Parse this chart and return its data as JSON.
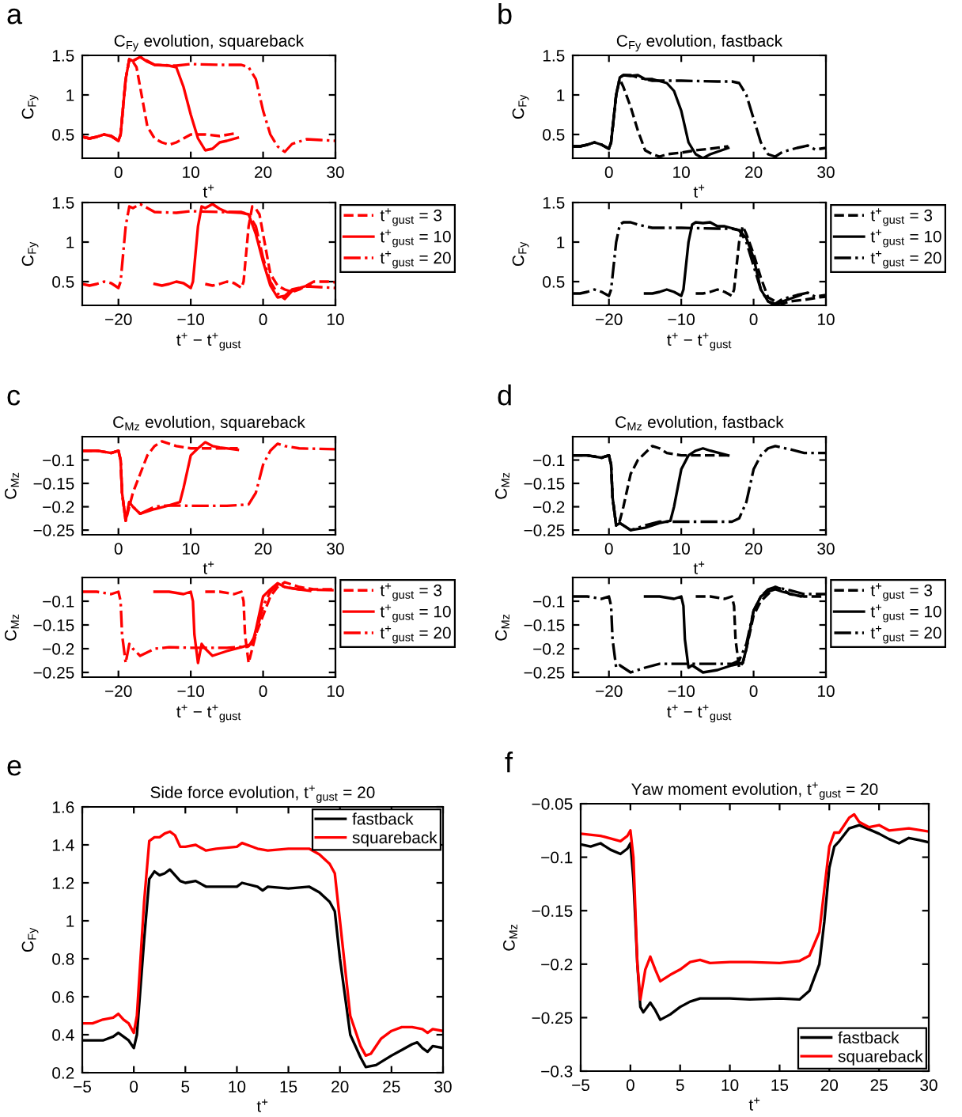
{
  "chart_data": [
    {
      "type": "line",
      "title": "C$_{Fy}$ evolution, squareback",
      "xlabel": "t$^{+}$",
      "ylabel": "C$_{Fy}$",
      "annotations": [
        "a"
      ],
      "xlim": [
        -5,
        30
      ],
      "ylim": [
        0.2,
        1.5
      ],
      "xticks": [
        0,
        10,
        20,
        30
      ],
      "yticks": [
        0.5,
        1,
        1.5
      ],
      "series": [
        {
          "color": "#ff0000",
          "line_style": "dashed",
          "x": [
            -5,
            -4,
            -3,
            -2,
            -1,
            0,
            0.3,
            1,
            1.5,
            2,
            2.5,
            3,
            4,
            5,
            6,
            7,
            8,
            9,
            10,
            12,
            14,
            16.5
          ],
          "values": [
            0.47,
            0.45,
            0.47,
            0.5,
            0.48,
            0.42,
            0.5,
            1.2,
            1.45,
            1.42,
            1.35,
            1.1,
            0.6,
            0.45,
            0.4,
            0.37,
            0.4,
            0.45,
            0.5,
            0.5,
            0.48,
            0.52
          ]
        },
        {
          "color": "#ff0000",
          "line_style": "solid",
          "x": [
            -5,
            -4,
            -3,
            -2,
            -1,
            0,
            0.3,
            1,
            1.5,
            2,
            3,
            4,
            5,
            7,
            8,
            9,
            10,
            11,
            12,
            13,
            14,
            15,
            16.5
          ],
          "values": [
            0.47,
            0.45,
            0.47,
            0.5,
            0.48,
            0.42,
            0.5,
            1.2,
            1.45,
            1.43,
            1.48,
            1.42,
            1.38,
            1.37,
            1.35,
            1.1,
            0.75,
            0.45,
            0.3,
            0.32,
            0.4,
            0.42,
            0.46
          ]
        },
        {
          "color": "#ff0000",
          "line_style": "dashdot",
          "x": [
            -5,
            -4,
            -3,
            -2,
            -1,
            0,
            0.3,
            1,
            1.5,
            2,
            3,
            5,
            8,
            10,
            14,
            17,
            18,
            19,
            20,
            21,
            22,
            23,
            24,
            26,
            28,
            30
          ],
          "values": [
            0.47,
            0.45,
            0.47,
            0.5,
            0.48,
            0.42,
            0.5,
            1.2,
            1.45,
            1.43,
            1.48,
            1.38,
            1.37,
            1.39,
            1.38,
            1.38,
            1.35,
            1.2,
            0.8,
            0.5,
            0.35,
            0.28,
            0.38,
            0.44,
            0.43,
            0.42
          ]
        }
      ]
    },
    {
      "type": "line",
      "xlabel": "t$^{+}$ − t$^{+}$$_{gust}$",
      "ylabel": "C$_{Fy}$",
      "legend": "right",
      "xlim": [
        -25,
        10
      ],
      "ylim": [
        0.2,
        1.5
      ],
      "xticks": [
        {
          "value": -20,
          "label": "−20"
        },
        {
          "value": -10,
          "label": "−10"
        },
        0,
        10
      ],
      "yticks": [
        0.5,
        1,
        1.5
      ],
      "series": [
        {
          "name": "t$^{+}$$_{gust}$ = 3",
          "color": "#ff0000",
          "line_style": "dashed",
          "x": [
            -8,
            -7,
            -6,
            -5,
            -4,
            -3,
            -2.7,
            -2,
            -1.5,
            -1,
            -0.5,
            0,
            1,
            2,
            3,
            4,
            5,
            6,
            7,
            9,
            10
          ],
          "values": [
            0.47,
            0.45,
            0.47,
            0.5,
            0.48,
            0.42,
            0.5,
            1.2,
            1.45,
            1.42,
            1.35,
            1.1,
            0.6,
            0.45,
            0.4,
            0.37,
            0.4,
            0.45,
            0.5,
            0.5,
            0.49
          ]
        },
        {
          "name": "t$^{+}$$_{gust}$ = 10",
          "color": "#ff0000",
          "line_style": "solid",
          "x": [
            -15,
            -14,
            -13,
            -12,
            -11,
            -10,
            -9.7,
            -9,
            -8.5,
            -8,
            -7,
            -6,
            -5,
            -3,
            -2,
            -1,
            0,
            1,
            2,
            3,
            4,
            5,
            6.5
          ],
          "values": [
            0.47,
            0.45,
            0.47,
            0.5,
            0.48,
            0.42,
            0.5,
            1.2,
            1.45,
            1.43,
            1.48,
            1.42,
            1.38,
            1.37,
            1.35,
            1.1,
            0.75,
            0.45,
            0.3,
            0.32,
            0.4,
            0.42,
            0.46
          ]
        },
        {
          "name": "t$^{+}$$_{gust}$ = 20",
          "color": "#ff0000",
          "line_style": "dashdot",
          "x": [
            -25,
            -24,
            -23,
            -22,
            -21,
            -20,
            -19.7,
            -19,
            -18.5,
            -18,
            -17,
            -15,
            -12,
            -10,
            -6,
            -3,
            -2,
            -1,
            0,
            1,
            2,
            3,
            4,
            6,
            8,
            10
          ],
          "values": [
            0.47,
            0.45,
            0.47,
            0.5,
            0.48,
            0.42,
            0.5,
            1.2,
            1.45,
            1.43,
            1.48,
            1.38,
            1.37,
            1.39,
            1.38,
            1.38,
            1.35,
            1.2,
            0.8,
            0.5,
            0.35,
            0.28,
            0.38,
            0.44,
            0.43,
            0.42
          ]
        }
      ]
    },
    {
      "type": "line",
      "title": "C$_{Fy}$ evolution, fastback",
      "xlabel": "t$^{+}$",
      "ylabel": "C$_{Fy}$",
      "annotations": [
        "b"
      ],
      "xlim": [
        -5,
        30
      ],
      "ylim": [
        0.2,
        1.5
      ],
      "xticks": [
        0,
        10,
        20,
        30
      ],
      "yticks": [
        0.5,
        1,
        1.5
      ],
      "series": [
        {
          "color": "#000000",
          "line_style": "dashed",
          "x": [
            -5,
            -4,
            -3,
            -2,
            -1,
            0,
            0.3,
            1,
            1.5,
            2,
            3,
            4,
            5,
            6,
            7,
            8,
            10,
            12,
            14,
            16.5
          ],
          "values": [
            0.35,
            0.35,
            0.37,
            0.4,
            0.37,
            0.32,
            0.4,
            1.0,
            1.2,
            1.1,
            0.85,
            0.55,
            0.3,
            0.25,
            0.22,
            0.25,
            0.27,
            0.3,
            0.32,
            0.35
          ]
        },
        {
          "color": "#000000",
          "line_style": "solid",
          "x": [
            -5,
            -4,
            -3,
            -2,
            -1,
            0,
            0.3,
            1,
            1.5,
            2,
            3,
            4,
            5,
            6,
            8,
            9,
            10,
            11,
            12,
            13,
            14,
            16.5
          ],
          "values": [
            0.35,
            0.35,
            0.37,
            0.4,
            0.37,
            0.32,
            0.4,
            1.0,
            1.22,
            1.25,
            1.24,
            1.25,
            1.2,
            1.2,
            1.15,
            1.05,
            0.8,
            0.4,
            0.25,
            0.2,
            0.25,
            0.33
          ]
        },
        {
          "color": "#000000",
          "line_style": "dashdot",
          "x": [
            -5,
            -4,
            -3,
            -2,
            -1,
            0,
            0.3,
            1,
            1.5,
            2,
            3,
            4,
            6,
            10,
            15,
            17,
            18,
            19,
            20,
            21,
            22,
            23,
            24,
            26,
            27.5,
            28.5,
            30
          ],
          "values": [
            0.35,
            0.35,
            0.37,
            0.4,
            0.37,
            0.32,
            0.4,
            1.0,
            1.22,
            1.25,
            1.25,
            1.22,
            1.18,
            1.18,
            1.17,
            1.17,
            1.15,
            1.0,
            0.7,
            0.4,
            0.25,
            0.22,
            0.28,
            0.33,
            0.36,
            0.31,
            0.33
          ]
        }
      ]
    },
    {
      "type": "line",
      "xlabel": "t$^{+}$ − t$^{+}$$_{gust}$",
      "ylabel": "C$_{Fy}$",
      "legend": "right",
      "xlim": [
        -25,
        10
      ],
      "ylim": [
        0.2,
        1.5
      ],
      "xticks": [
        {
          "value": -20,
          "label": "−20"
        },
        {
          "value": -10,
          "label": "−10"
        },
        0,
        10
      ],
      "yticks": [
        0.5,
        1,
        1.5
      ],
      "series": [
        {
          "name": "t$^{+}$$_{gust}$ = 3",
          "color": "#000000",
          "line_style": "dashed",
          "x": [
            -8,
            -7,
            -6,
            -5,
            -4,
            -3,
            -2.7,
            -2,
            -1.5,
            -1,
            0,
            1,
            2,
            3,
            4,
            5,
            7,
            9,
            10
          ],
          "values": [
            0.35,
            0.35,
            0.37,
            0.4,
            0.37,
            0.32,
            0.4,
            1.0,
            1.2,
            1.1,
            0.85,
            0.55,
            0.3,
            0.25,
            0.22,
            0.25,
            0.27,
            0.3,
            0.31
          ]
        },
        {
          "name": "t$^{+}$$_{gust}$ = 10",
          "color": "#000000",
          "line_style": "solid",
          "x": [
            -15,
            -14,
            -13,
            -12,
            -11,
            -10,
            -9.7,
            -9,
            -8.5,
            -8,
            -7,
            -6,
            -5,
            -4,
            -2,
            -1,
            0,
            1,
            2,
            3,
            4,
            6.5
          ],
          "values": [
            0.35,
            0.35,
            0.37,
            0.4,
            0.37,
            0.32,
            0.4,
            1.0,
            1.22,
            1.25,
            1.24,
            1.25,
            1.2,
            1.2,
            1.15,
            1.05,
            0.8,
            0.4,
            0.25,
            0.2,
            0.25,
            0.33
          ]
        },
        {
          "name": "t$^{+}$$_{gust}$ = 20",
          "color": "#000000",
          "line_style": "dashdot",
          "x": [
            -25,
            -24,
            -23,
            -22,
            -21,
            -20,
            -19.7,
            -19,
            -18.5,
            -18,
            -17,
            -16,
            -14,
            -10,
            -5,
            -3,
            -2,
            -1,
            0,
            1,
            2,
            3,
            4,
            6,
            7.5,
            8.5,
            10
          ],
          "values": [
            0.35,
            0.35,
            0.37,
            0.4,
            0.37,
            0.32,
            0.4,
            1.0,
            1.22,
            1.25,
            1.25,
            1.22,
            1.18,
            1.18,
            1.17,
            1.17,
            1.15,
            1.0,
            0.7,
            0.4,
            0.25,
            0.22,
            0.28,
            0.33,
            0.36,
            0.31,
            0.33
          ]
        }
      ]
    },
    {
      "type": "line",
      "title": "C$_{Mz}$ evolution, squareback",
      "xlabel": "t$^{+}$",
      "ylabel": "C$_{Mz}$",
      "annotations": [
        "c"
      ],
      "xlim": [
        -5,
        30
      ],
      "ylim": [
        -0.26,
        -0.05
      ],
      "xticks": [
        0,
        10,
        20,
        30
      ],
      "yticks": [
        {
          "value": -0.25,
          "label": "−0.25"
        },
        {
          "value": -0.2,
          "label": "−0.2"
        },
        {
          "value": -0.15,
          "label": "−0.15"
        },
        {
          "value": -0.1,
          "label": "−0.1"
        }
      ],
      "series": [
        {
          "color": "#ff0000",
          "line_style": "dashed",
          "x": [
            -5,
            -3,
            -1,
            0,
            0.3,
            0.5,
            1,
            1.5,
            2,
            3,
            4,
            5,
            6,
            7,
            8,
            10,
            12,
            14,
            16.5
          ],
          "values": [
            -0.08,
            -0.08,
            -0.085,
            -0.08,
            -0.1,
            -0.17,
            -0.23,
            -0.2,
            -0.17,
            -0.13,
            -0.09,
            -0.07,
            -0.06,
            -0.065,
            -0.07,
            -0.075,
            -0.075,
            -0.075,
            -0.075
          ]
        },
        {
          "color": "#ff0000",
          "line_style": "solid",
          "x": [
            -5,
            -3,
            -1,
            0,
            0.3,
            0.5,
            1,
            1.5,
            2,
            3,
            5,
            7,
            8.5,
            9,
            10,
            11,
            12,
            13,
            14,
            16.5
          ],
          "values": [
            -0.08,
            -0.08,
            -0.085,
            -0.08,
            -0.1,
            -0.17,
            -0.23,
            -0.19,
            -0.2,
            -0.215,
            -0.205,
            -0.197,
            -0.19,
            -0.16,
            -0.09,
            -0.075,
            -0.062,
            -0.07,
            -0.073,
            -0.078
          ]
        },
        {
          "color": "#ff0000",
          "line_style": "dashdot",
          "x": [
            -5,
            -3,
            -1,
            0,
            0.3,
            0.5,
            1,
            1.5,
            2,
            3,
            5,
            7,
            10,
            15,
            18,
            19,
            20,
            21,
            22,
            23,
            25,
            30
          ],
          "values": [
            -0.08,
            -0.08,
            -0.085,
            -0.08,
            -0.1,
            -0.17,
            -0.23,
            -0.19,
            -0.2,
            -0.215,
            -0.2,
            -0.197,
            -0.198,
            -0.198,
            -0.195,
            -0.17,
            -0.11,
            -0.08,
            -0.065,
            -0.07,
            -0.075,
            -0.077
          ]
        }
      ]
    },
    {
      "type": "line",
      "xlabel": "t$^{+}$ − t$^{+}$$_{gust}$",
      "ylabel": "C$_{Mz}$",
      "legend": "right",
      "xlim": [
        -25,
        10
      ],
      "ylim": [
        -0.26,
        -0.05
      ],
      "xticks": [
        {
          "value": -20,
          "label": "−20"
        },
        {
          "value": -10,
          "label": "−10"
        },
        0,
        10
      ],
      "yticks": [
        {
          "value": -0.25,
          "label": "−0.25"
        },
        {
          "value": -0.2,
          "label": "−0.2"
        },
        {
          "value": -0.15,
          "label": "−0.15"
        },
        {
          "value": -0.1,
          "label": "−0.1"
        }
      ],
      "series": [
        {
          "name": "t$^{+}$$_{gust}$ = 3",
          "color": "#ff0000",
          "line_style": "dashed",
          "x": [
            -8,
            -6,
            -4,
            -3,
            -2.7,
            -2.5,
            -2,
            -1.5,
            -1,
            0,
            1,
            2,
            3,
            4,
            5,
            7,
            9,
            10
          ],
          "values": [
            -0.08,
            -0.08,
            -0.085,
            -0.08,
            -0.1,
            -0.17,
            -0.23,
            -0.2,
            -0.17,
            -0.13,
            -0.09,
            -0.07,
            -0.06,
            -0.065,
            -0.07,
            -0.075,
            -0.075,
            -0.075
          ]
        },
        {
          "name": "t$^{+}$$_{gust}$ = 10",
          "color": "#ff0000",
          "line_style": "solid",
          "x": [
            -15,
            -13,
            -11,
            -10,
            -9.7,
            -9.5,
            -9,
            -8.5,
            -8,
            -7,
            -5,
            -3,
            -1.5,
            -1,
            0,
            1,
            2,
            3,
            4,
            6.5
          ],
          "values": [
            -0.08,
            -0.08,
            -0.085,
            -0.08,
            -0.1,
            -0.17,
            -0.23,
            -0.19,
            -0.2,
            -0.215,
            -0.205,
            -0.197,
            -0.19,
            -0.16,
            -0.09,
            -0.075,
            -0.062,
            -0.07,
            -0.073,
            -0.078
          ]
        },
        {
          "name": "t$^{+}$$_{gust}$ = 20",
          "color": "#ff0000",
          "line_style": "dashdot",
          "x": [
            -25,
            -23,
            -21,
            -20,
            -19.7,
            -19.5,
            -19,
            -18.5,
            -18,
            -17,
            -15,
            -13,
            -10,
            -5,
            -2,
            -1,
            0,
            1,
            2,
            3,
            5,
            10
          ],
          "values": [
            -0.08,
            -0.08,
            -0.085,
            -0.08,
            -0.1,
            -0.17,
            -0.23,
            -0.19,
            -0.2,
            -0.215,
            -0.2,
            -0.197,
            -0.198,
            -0.198,
            -0.195,
            -0.17,
            -0.11,
            -0.08,
            -0.065,
            -0.07,
            -0.075,
            -0.077
          ]
        }
      ]
    },
    {
      "type": "line",
      "title": "C$_{Mz}$ evolution, fastback",
      "xlabel": "t$^{+}$",
      "ylabel": "C$_{Mz}$",
      "annotations": [
        "d"
      ],
      "xlim": [
        -5,
        30
      ],
      "ylim": [
        -0.26,
        -0.05
      ],
      "xticks": [
        0,
        10,
        20,
        30
      ],
      "yticks": [
        {
          "value": -0.25,
          "label": "−0.25"
        },
        {
          "value": -0.2,
          "label": "−0.2"
        },
        {
          "value": -0.15,
          "label": "−0.15"
        },
        {
          "value": -0.1,
          "label": "−0.1"
        }
      ],
      "series": [
        {
          "color": "#000000",
          "line_style": "dashed",
          "x": [
            -5,
            -3,
            -1,
            0,
            0.3,
            0.5,
            1,
            1.5,
            2,
            3,
            4,
            5,
            6,
            7,
            8,
            10,
            12,
            14,
            16.5
          ],
          "values": [
            -0.09,
            -0.09,
            -0.095,
            -0.09,
            -0.11,
            -0.18,
            -0.24,
            -0.23,
            -0.2,
            -0.13,
            -0.1,
            -0.085,
            -0.07,
            -0.075,
            -0.085,
            -0.09,
            -0.09,
            -0.09,
            -0.09
          ]
        },
        {
          "color": "#000000",
          "line_style": "solid",
          "x": [
            -5,
            -3,
            -1,
            0,
            0.3,
            0.5,
            1,
            1.5,
            2,
            3,
            5,
            7,
            8.5,
            9,
            10,
            11,
            12,
            13,
            14,
            16.5
          ],
          "values": [
            -0.09,
            -0.09,
            -0.095,
            -0.09,
            -0.11,
            -0.18,
            -0.24,
            -0.235,
            -0.24,
            -0.25,
            -0.245,
            -0.235,
            -0.23,
            -0.2,
            -0.12,
            -0.09,
            -0.08,
            -0.075,
            -0.08,
            -0.09
          ]
        },
        {
          "color": "#000000",
          "line_style": "dashdot",
          "x": [
            -5,
            -3,
            -1,
            0,
            0.3,
            0.5,
            1,
            1.5,
            2,
            3,
            5,
            7,
            10,
            15,
            17,
            18,
            19,
            20,
            21,
            22,
            23,
            25,
            27,
            30
          ],
          "values": [
            -0.09,
            -0.09,
            -0.095,
            -0.09,
            -0.11,
            -0.18,
            -0.24,
            -0.235,
            -0.24,
            -0.25,
            -0.24,
            -0.232,
            -0.232,
            -0.232,
            -0.232,
            -0.225,
            -0.19,
            -0.12,
            -0.09,
            -0.075,
            -0.07,
            -0.077,
            -0.085,
            -0.085
          ]
        }
      ]
    },
    {
      "type": "line",
      "xlabel": "t$^{+}$ − t$^{+}$$_{gust}$",
      "ylabel": "C$_{Mz}$",
      "legend": "right",
      "xlim": [
        -25,
        10
      ],
      "ylim": [
        -0.26,
        -0.05
      ],
      "xticks": [
        {
          "value": -20,
          "label": "−20"
        },
        {
          "value": -10,
          "label": "−10"
        },
        0,
        10
      ],
      "yticks": [
        {
          "value": -0.25,
          "label": "−0.25"
        },
        {
          "value": -0.2,
          "label": "−0.2"
        },
        {
          "value": -0.15,
          "label": "−0.15"
        },
        {
          "value": -0.1,
          "label": "−0.1"
        }
      ],
      "series": [
        {
          "name": "t$^{+}$$_{gust}$ = 3",
          "color": "#000000",
          "line_style": "dashed",
          "x": [
            -8,
            -6,
            -4,
            -3,
            -2.7,
            -2.5,
            -2,
            -1.5,
            -1,
            0,
            1,
            2,
            3,
            4,
            5,
            7,
            9,
            10
          ],
          "values": [
            -0.09,
            -0.09,
            -0.095,
            -0.09,
            -0.11,
            -0.18,
            -0.24,
            -0.23,
            -0.2,
            -0.13,
            -0.1,
            -0.085,
            -0.07,
            -0.075,
            -0.085,
            -0.09,
            -0.09,
            -0.09
          ]
        },
        {
          "name": "t$^{+}$$_{gust}$ = 10",
          "color": "#000000",
          "line_style": "solid",
          "x": [
            -15,
            -13,
            -11,
            -10,
            -9.7,
            -9.5,
            -9,
            -8.5,
            -8,
            -7,
            -5,
            -3,
            -1.5,
            -1,
            0,
            1,
            2,
            3,
            4,
            6.5
          ],
          "values": [
            -0.09,
            -0.09,
            -0.095,
            -0.09,
            -0.11,
            -0.18,
            -0.24,
            -0.235,
            -0.24,
            -0.25,
            -0.245,
            -0.235,
            -0.23,
            -0.2,
            -0.12,
            -0.09,
            -0.08,
            -0.075,
            -0.08,
            -0.09
          ]
        },
        {
          "name": "t$^{+}$$_{gust}$ = 20",
          "color": "#000000",
          "line_style": "dashdot",
          "x": [
            -25,
            -23,
            -21,
            -20,
            -19.7,
            -19.5,
            -19,
            -18.5,
            -18,
            -17,
            -15,
            -13,
            -10,
            -5,
            -3,
            -2,
            -1,
            0,
            1,
            2,
            3,
            5,
            7,
            10
          ],
          "values": [
            -0.09,
            -0.09,
            -0.095,
            -0.09,
            -0.11,
            -0.18,
            -0.24,
            -0.235,
            -0.24,
            -0.25,
            -0.24,
            -0.232,
            -0.232,
            -0.232,
            -0.232,
            -0.225,
            -0.19,
            -0.12,
            -0.09,
            -0.075,
            -0.07,
            -0.077,
            -0.085,
            -0.085
          ]
        }
      ]
    },
    {
      "type": "line",
      "title": "Side force evolution, t$^{+}$$_{gust}$ = 20",
      "xlabel": "t$^{+}$",
      "ylabel": "C$_{Fy}$",
      "annotations": [
        "e"
      ],
      "legend": "top right",
      "xlim": [
        -5,
        30
      ],
      "ylim": [
        0.2,
        1.6
      ],
      "xticks": [
        {
          "value": -5,
          "label": "−5"
        },
        0,
        5,
        10,
        15,
        20,
        25,
        30
      ],
      "yticks": [
        0.2,
        0.4,
        0.6,
        0.8,
        1,
        1.2,
        1.4,
        1.6
      ],
      "series": [
        {
          "name": "fastback",
          "color": "#000000",
          "line_style": "solid",
          "x": [
            -5,
            -4,
            -3,
            -2,
            -1.5,
            -1,
            -0.5,
            0,
            0.3,
            1,
            1.5,
            2,
            2.5,
            3,
            3.5,
            4,
            4.5,
            5,
            6,
            7,
            8,
            10,
            10.5,
            12,
            12.5,
            13,
            15,
            17,
            18,
            19,
            19.5,
            20,
            21,
            22,
            22.5,
            23.5,
            25,
            26,
            27,
            27.5,
            28,
            28.5,
            29,
            30
          ],
          "values": [
            0.37,
            0.37,
            0.37,
            0.39,
            0.41,
            0.39,
            0.37,
            0.33,
            0.4,
            0.9,
            1.22,
            1.26,
            1.24,
            1.25,
            1.27,
            1.24,
            1.21,
            1.2,
            1.21,
            1.18,
            1.18,
            1.18,
            1.2,
            1.18,
            1.16,
            1.18,
            1.17,
            1.18,
            1.15,
            1.1,
            1.05,
            0.8,
            0.4,
            0.28,
            0.23,
            0.24,
            0.29,
            0.32,
            0.35,
            0.36,
            0.33,
            0.31,
            0.34,
            0.33
          ]
        },
        {
          "name": "squareback",
          "color": "#ff0000",
          "line_style": "solid",
          "x": [
            -5,
            -4,
            -3,
            -2,
            -1.5,
            -1,
            -0.5,
            0,
            0.3,
            1,
            1.5,
            2,
            2.5,
            3,
            3.5,
            4,
            4.5,
            5,
            6,
            7,
            8,
            10,
            10.5,
            12,
            13,
            15,
            17,
            18,
            19,
            19.5,
            20,
            21,
            22,
            22.5,
            23,
            24,
            25,
            26,
            27,
            28,
            28.5,
            29,
            30
          ],
          "values": [
            0.46,
            0.46,
            0.48,
            0.49,
            0.51,
            0.48,
            0.46,
            0.41,
            0.5,
            1.1,
            1.42,
            1.44,
            1.44,
            1.46,
            1.47,
            1.45,
            1.39,
            1.39,
            1.4,
            1.37,
            1.38,
            1.39,
            1.41,
            1.38,
            1.37,
            1.38,
            1.38,
            1.35,
            1.3,
            1.25,
            1.0,
            0.5,
            0.34,
            0.29,
            0.3,
            0.38,
            0.42,
            0.44,
            0.44,
            0.43,
            0.41,
            0.43,
            0.42
          ]
        }
      ]
    },
    {
      "type": "line",
      "title": "Yaw moment evolution, t$^{+}$$_{gust}$ = 20",
      "xlabel": "t$^{+}$",
      "ylabel": "C$_{Mz}$",
      "annotations": [
        "f"
      ],
      "legend": "bottom right",
      "xlim": [
        -5,
        30
      ],
      "ylim": [
        -0.3,
        -0.05
      ],
      "xticks": [
        {
          "value": -5,
          "label": "−5"
        },
        0,
        5,
        10,
        15,
        20,
        25,
        30
      ],
      "yticks": [
        {
          "value": -0.3,
          "label": "−0.3"
        },
        {
          "value": -0.25,
          "label": "−0.25"
        },
        {
          "value": -0.2,
          "label": "−0.2"
        },
        {
          "value": -0.15,
          "label": "−0.15"
        },
        {
          "value": -0.1,
          "label": "−0.1"
        },
        {
          "value": -0.05,
          "label": "−0.05"
        }
      ],
      "series": [
        {
          "name": "fastback",
          "color": "#000000",
          "line_style": "solid",
          "x": [
            -5,
            -4,
            -3,
            -2,
            -1,
            -0.3,
            0,
            0.3,
            0.7,
            1,
            1.3,
            2,
            2.5,
            3,
            4,
            5,
            6,
            7,
            10,
            12,
            15,
            17,
            18,
            19,
            19.5,
            20,
            20.5,
            21,
            22,
            23,
            25,
            26,
            27,
            28,
            29,
            30
          ],
          "values": [
            -0.088,
            -0.09,
            -0.087,
            -0.093,
            -0.097,
            -0.092,
            -0.087,
            -0.12,
            -0.2,
            -0.24,
            -0.245,
            -0.236,
            -0.243,
            -0.252,
            -0.247,
            -0.24,
            -0.235,
            -0.232,
            -0.232,
            -0.233,
            -0.232,
            -0.233,
            -0.225,
            -0.2,
            -0.16,
            -0.11,
            -0.09,
            -0.085,
            -0.073,
            -0.07,
            -0.078,
            -0.083,
            -0.087,
            -0.082,
            -0.084,
            -0.086
          ]
        },
        {
          "name": "squareback",
          "color": "#ff0000",
          "line_style": "solid",
          "x": [
            -5,
            -3,
            -1,
            -0.3,
            0,
            0.3,
            0.7,
            1,
            1.5,
            2,
            2.5,
            3,
            4,
            5,
            6,
            7,
            8,
            10,
            12,
            15,
            17,
            18,
            19,
            19.5,
            20,
            20.5,
            21,
            22,
            22.5,
            23,
            24,
            25,
            26,
            28,
            30
          ],
          "values": [
            -0.078,
            -0.08,
            -0.085,
            -0.08,
            -0.075,
            -0.1,
            -0.2,
            -0.233,
            -0.205,
            -0.193,
            -0.205,
            -0.216,
            -0.21,
            -0.205,
            -0.198,
            -0.196,
            -0.199,
            -0.198,
            -0.198,
            -0.199,
            -0.197,
            -0.192,
            -0.17,
            -0.13,
            -0.09,
            -0.077,
            -0.077,
            -0.063,
            -0.06,
            -0.067,
            -0.072,
            -0.07,
            -0.075,
            -0.073,
            -0.076
          ]
        }
      ]
    }
  ]
}
